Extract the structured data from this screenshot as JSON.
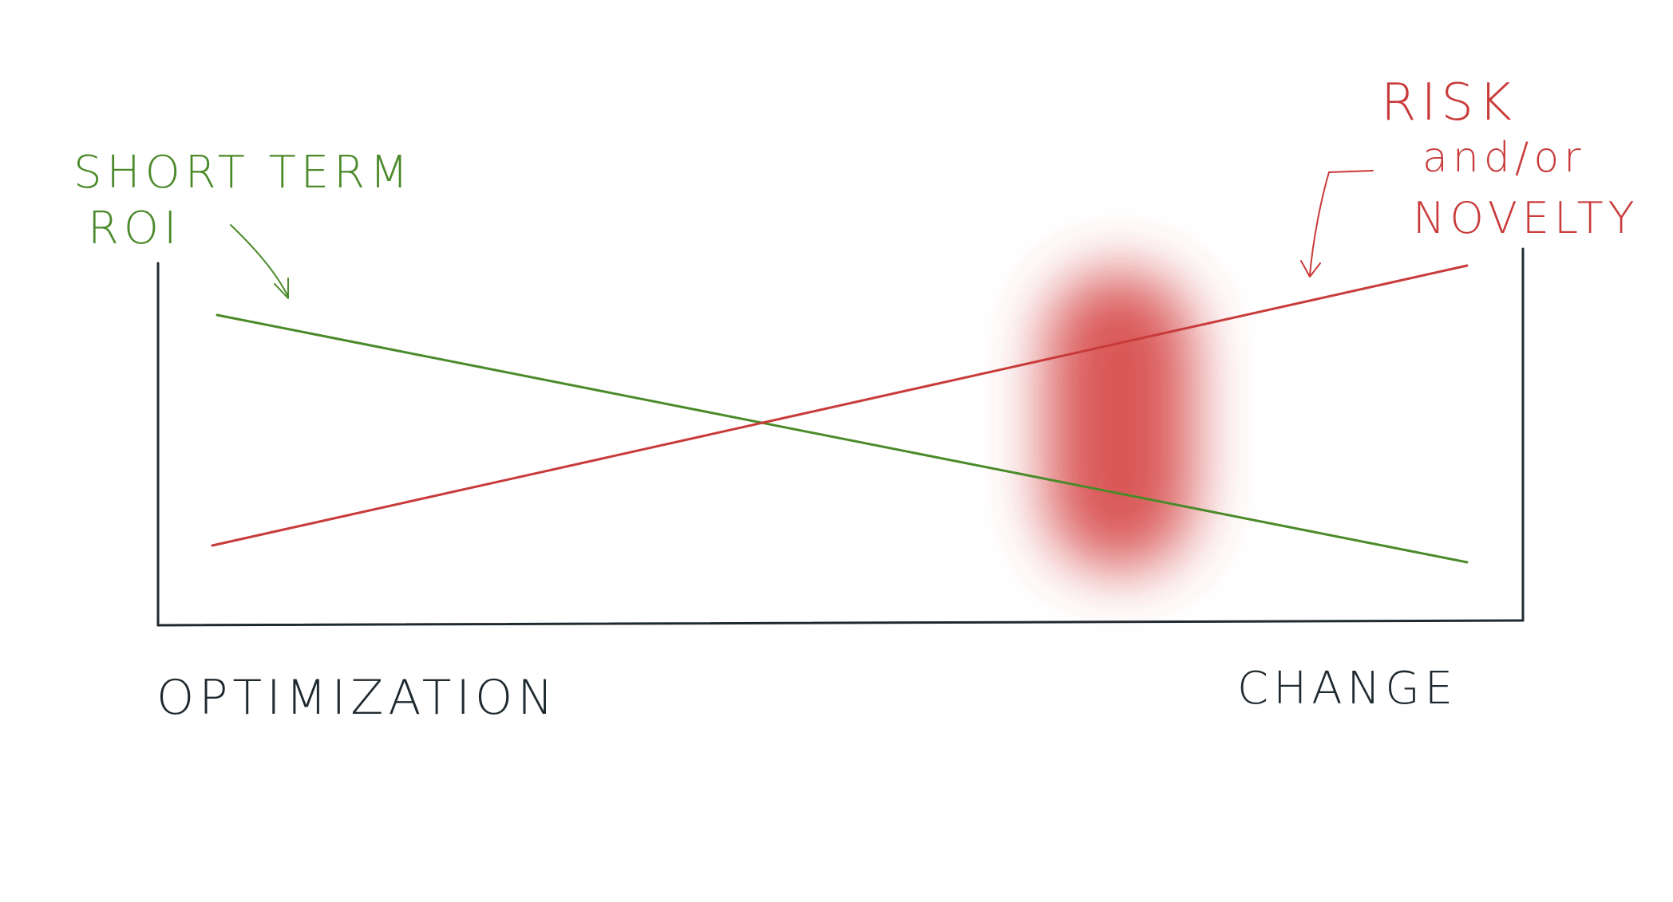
{
  "labels": {
    "green_annotation_line1": "SHORT TERM",
    "green_annotation_line2": "ROI",
    "red_annotation_line1": "RISK",
    "red_annotation_line2": "and/or",
    "red_annotation_line3": "NOVELTY",
    "x_left": "OPTIMIZATION",
    "x_right": "CHANGE"
  },
  "colors": {
    "green": "#4b8a2a",
    "red": "#c93a3a",
    "blur": "#d64545",
    "axis": "#1f2a30",
    "label_dark": "#1f2a30"
  },
  "series": {
    "short_term_roi": {
      "trend": "decreasing"
    },
    "risk_novelty": {
      "trend": "increasing"
    }
  }
}
